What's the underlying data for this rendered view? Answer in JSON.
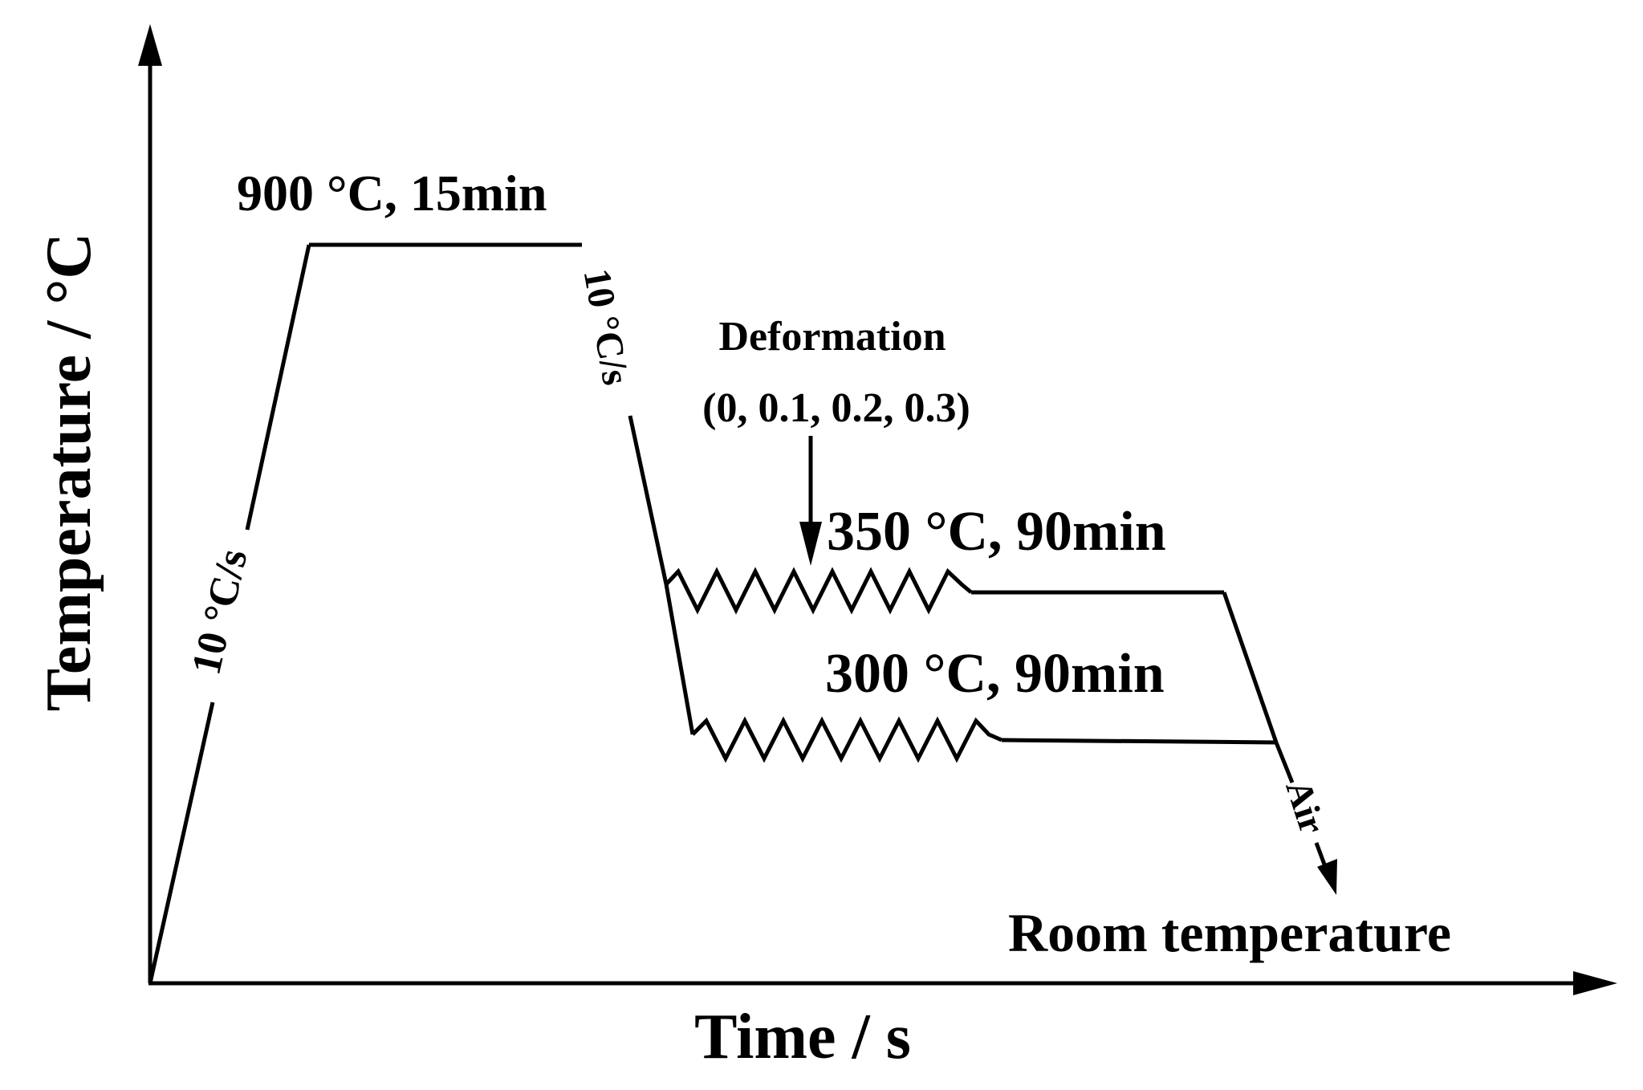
{
  "axes": {
    "y_label": "Temperature / °C",
    "x_label": "Time / s"
  },
  "annotations": {
    "heating_rate": "10 °C/s",
    "austenitize": "900 °C, 15min",
    "cooling_rate": "10 °C/s",
    "deformation_title": "Deformation",
    "deformation_values": "(0, 0.1, 0.2, 0.3)",
    "hold_high": "350 °C, 90min",
    "hold_low": "300 °C, 90min",
    "air_cool": "Air",
    "room_temp": "Room temperature"
  }
}
